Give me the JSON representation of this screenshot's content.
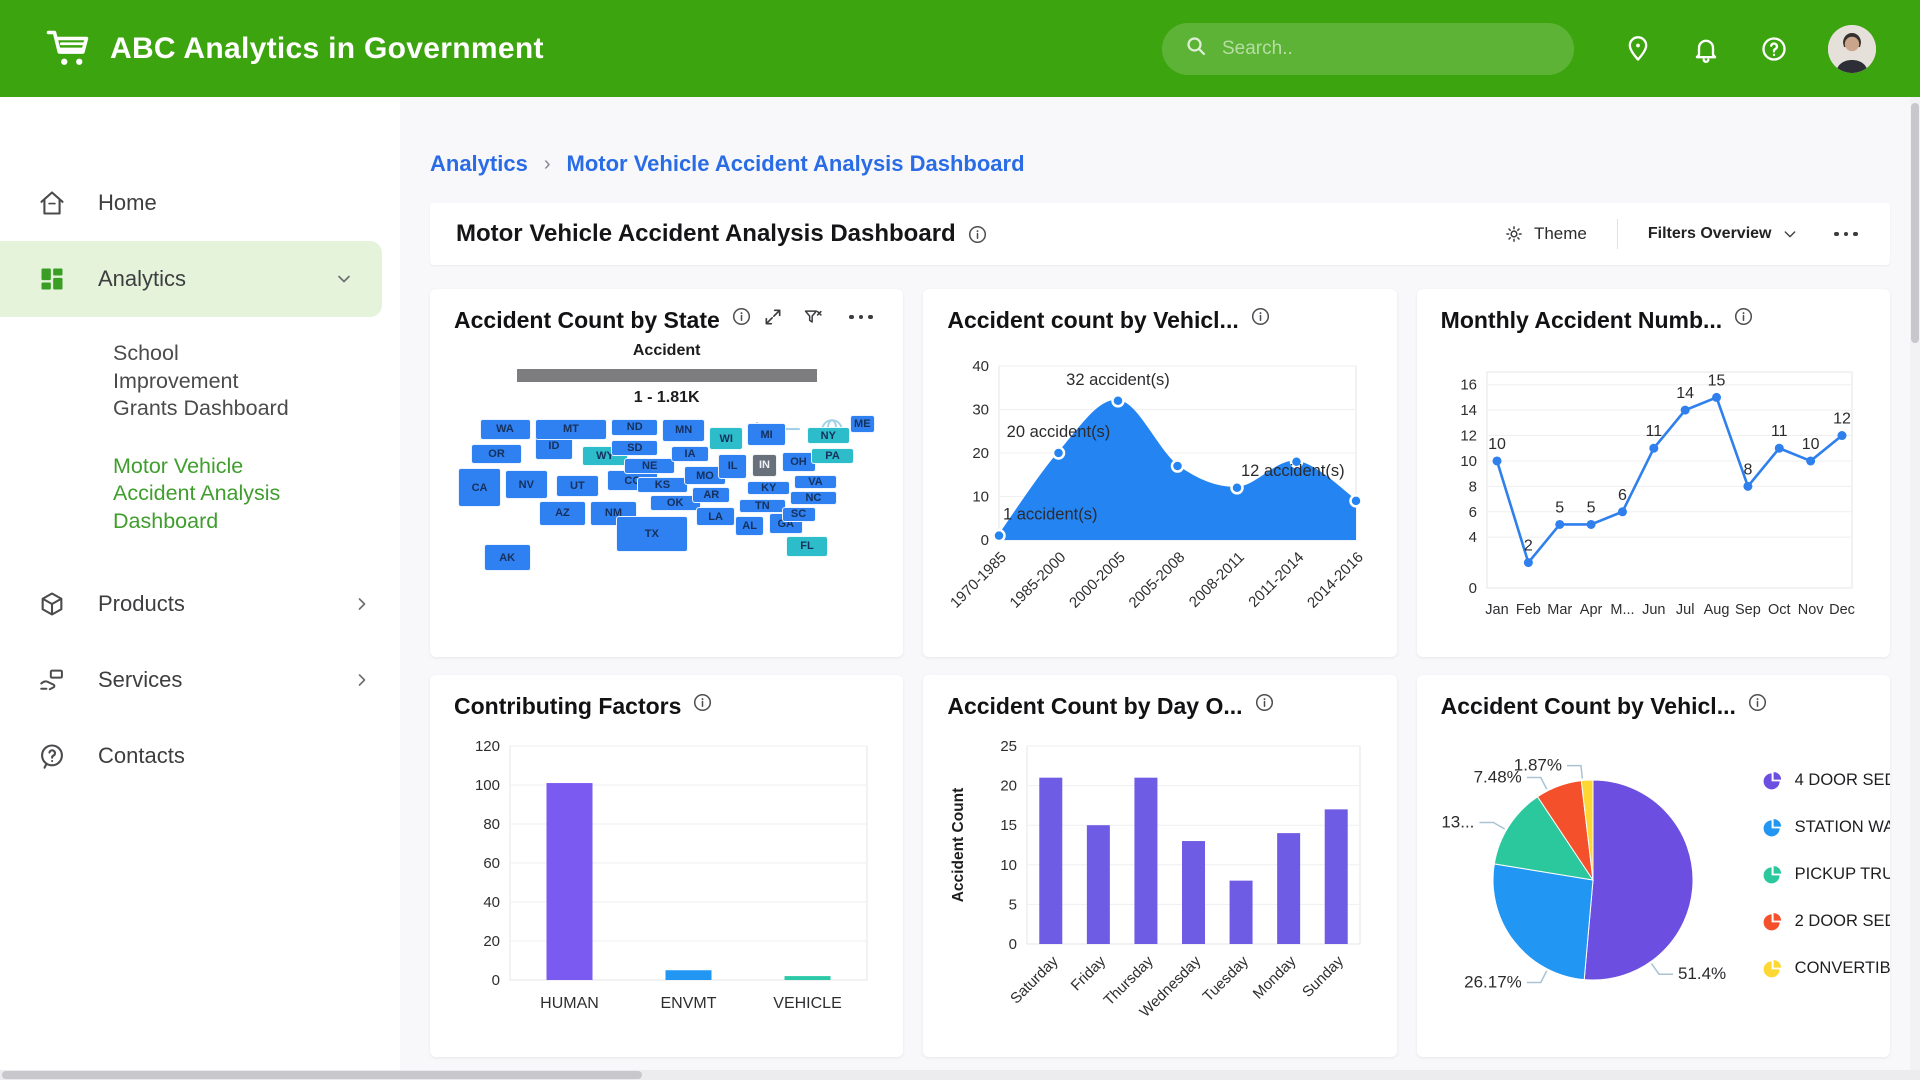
{
  "header": {
    "brand": "ABC Analytics in Government",
    "search_placeholder": "Search..",
    "accent_green": "#3ca40e"
  },
  "sidebar": {
    "active_color": "#3f9e2d",
    "active_bg": "#e4f3da",
    "items": [
      {
        "label": "Home",
        "icon": "home-icon"
      },
      {
        "label": "Analytics",
        "icon": "analytics-grid-icon",
        "state": "active-parent",
        "chevron": "down"
      },
      {
        "label": "School Improvement Grants Dashboard",
        "type": "sub"
      },
      {
        "label": "Motor Vehicle Accident Analysis Dashboard",
        "type": "sub",
        "state": "active"
      },
      {
        "label": "Products",
        "icon": "products-box-icon",
        "chevron": "right",
        "gap_before": true
      },
      {
        "label": "Services",
        "icon": "services-hand-icon",
        "chevron": "right"
      },
      {
        "label": "Contacts",
        "icon": "contacts-help-icon"
      }
    ]
  },
  "breadcrumb": {
    "parent": "Analytics",
    "separator": "›",
    "current": "Motor Vehicle Accident Analysis Dashboard"
  },
  "toolbar": {
    "title": "Motor Vehicle Accident Analysis Dashboard",
    "theme_label": "Theme",
    "filters_label": "Filters Overview"
  },
  "chart_data": [
    {
      "type": "choropleth_map",
      "title": "Accident Count by State",
      "legend_title": "Accident",
      "legend_range": "1 - 1.81K",
      "legend_bar_color": "#7d7d80",
      "zoom_in_glyph": "+",
      "zoom_out_glyph": "−",
      "tones": {
        "blue": "#2f80f0",
        "teal": "#2dbcc9",
        "selected": "#68707c"
      },
      "states": [
        {
          "abbr": "WA",
          "tone": "blue"
        },
        {
          "abbr": "OR",
          "tone": "blue"
        },
        {
          "abbr": "CA",
          "tone": "blue"
        },
        {
          "abbr": "ID",
          "tone": "blue"
        },
        {
          "abbr": "NV",
          "tone": "blue"
        },
        {
          "abbr": "UT",
          "tone": "blue"
        },
        {
          "abbr": "AZ",
          "tone": "blue"
        },
        {
          "abbr": "MT",
          "tone": "blue"
        },
        {
          "abbr": "WY",
          "tone": "teal"
        },
        {
          "abbr": "CO",
          "tone": "blue"
        },
        {
          "abbr": "NM",
          "tone": "blue"
        },
        {
          "abbr": "ND",
          "tone": "blue"
        },
        {
          "abbr": "SD",
          "tone": "blue"
        },
        {
          "abbr": "NE",
          "tone": "blue"
        },
        {
          "abbr": "KS",
          "tone": "blue"
        },
        {
          "abbr": "OK",
          "tone": "blue"
        },
        {
          "abbr": "TX",
          "tone": "blue"
        },
        {
          "abbr": "MN",
          "tone": "blue"
        },
        {
          "abbr": "IA",
          "tone": "blue"
        },
        {
          "abbr": "MO",
          "tone": "blue"
        },
        {
          "abbr": "AR",
          "tone": "blue"
        },
        {
          "abbr": "LA",
          "tone": "blue"
        },
        {
          "abbr": "WI",
          "tone": "teal"
        },
        {
          "abbr": "IL",
          "tone": "blue"
        },
        {
          "abbr": "MI",
          "tone": "blue"
        },
        {
          "abbr": "IN",
          "tone": "selected"
        },
        {
          "abbr": "OH",
          "tone": "blue"
        },
        {
          "abbr": "KY",
          "tone": "blue"
        },
        {
          "abbr": "TN",
          "tone": "blue"
        },
        {
          "abbr": "AL",
          "tone": "blue"
        },
        {
          "abbr": "GA",
          "tone": "blue"
        },
        {
          "abbr": "FL",
          "tone": "teal"
        },
        {
          "abbr": "SC",
          "tone": "blue"
        },
        {
          "abbr": "NC",
          "tone": "blue"
        },
        {
          "abbr": "VA",
          "tone": "blue"
        },
        {
          "abbr": "PA",
          "tone": "teal"
        },
        {
          "abbr": "NY",
          "tone": "teal"
        },
        {
          "abbr": "ME",
          "tone": "blue"
        },
        {
          "abbr": "AK",
          "tone": "blue"
        }
      ]
    },
    {
      "type": "area",
      "title": "Accident count by Vehicl...",
      "categories": [
        "1970-1985",
        "1985-2000",
        "2000-2005",
        "2005-2008",
        "2008-2011",
        "2011-2014",
        "2014-2016"
      ],
      "values": [
        1,
        20,
        32,
        17,
        12,
        18,
        9
      ],
      "point_labels": [
        "1 accident(s)",
        "20 accident(s)",
        "32 accident(s)",
        "",
        "12 accident(s)",
        "",
        ""
      ],
      "ylim": [
        0,
        40
      ],
      "yticks": [
        0,
        10,
        20,
        30,
        40
      ],
      "color": "#2484f2"
    },
    {
      "type": "line",
      "title": "Monthly Accident Numb...",
      "categories": [
        "Jan",
        "Feb",
        "Mar",
        "Apr",
        "M...",
        "Jun",
        "Jul",
        "Aug",
        "Sep",
        "Oct",
        "Nov",
        "Dec"
      ],
      "values": [
        10,
        2,
        5,
        5,
        6,
        11,
        14,
        15,
        8,
        11,
        10,
        12
      ],
      "ylim": [
        0,
        17
      ],
      "yticks": [
        0,
        4,
        6,
        8,
        10,
        12,
        14,
        16
      ],
      "color": "#2f80ed"
    },
    {
      "type": "bar",
      "title": "Contributing Factors",
      "categories": [
        "HUMAN",
        "ENVMT",
        "VEHICLE"
      ],
      "values": [
        101,
        5,
        2
      ],
      "bar_colors": [
        "#7b5af2",
        "#2196f3",
        "#2bc9a7"
      ],
      "ylim": [
        0,
        120
      ],
      "yticks": [
        0,
        20,
        40,
        60,
        80,
        100,
        120
      ]
    },
    {
      "type": "bar",
      "title": "Accident Count by Day O...",
      "ylabel": "Accident Count",
      "categories": [
        "Saturday",
        "Friday",
        "Thursday",
        "Wednesday",
        "Tuesday",
        "Monday",
        "Sunday"
      ],
      "values": [
        21,
        15,
        21,
        13,
        8,
        14,
        17
      ],
      "bar_colors": [
        "#6f5ce4",
        "#6f5ce4",
        "#6f5ce4",
        "#6f5ce4",
        "#6f5ce4",
        "#6f5ce4",
        "#6f5ce4"
      ],
      "ylim": [
        0,
        25
      ],
      "yticks": [
        0,
        5,
        10,
        15,
        20,
        25
      ],
      "rotate_xticks": true
    },
    {
      "type": "pie",
      "title": "Accident Count by Vehicl...",
      "slices": [
        {
          "label": "4 DOOR SED",
          "value": 51.4,
          "display": "51.4%",
          "color": "#6c4ee0",
          "label_angle": 145
        },
        {
          "label": "STATION WA",
          "value": 26.17,
          "display": "26.17%",
          "color": "#2196f3",
          "label_angle": 207
        },
        {
          "label": "PICKUP TRU",
          "value": 13.08,
          "display": "13...",
          "color": "#2bc79d",
          "label_angle": 300
        },
        {
          "label": "2 DOOR SED",
          "value": 7.48,
          "display": "7.48%",
          "color": "#f4502b",
          "label_angle": 333
        },
        {
          "label": "CONVERTIB",
          "value": 1.87,
          "display": "1.87%",
          "color": "#fdd835",
          "label_angle": 354
        }
      ]
    }
  ]
}
